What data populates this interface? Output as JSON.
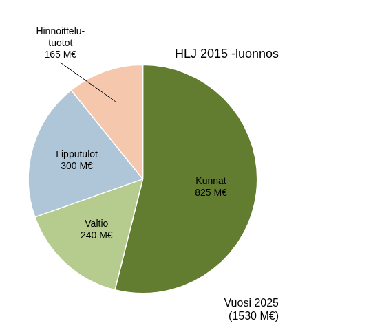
{
  "chart_data": {
    "type": "pie",
    "title": "HLJ 2015 -luonnos",
    "subtitle": "Vuosi 2025\n(1530 M€)",
    "categories": [
      "Kunnat\n825 M€",
      "Valtio\n240 M€",
      "Lipputulot\n300 M€",
      "Hinnoittelu-\ntuotot\n165 M€"
    ],
    "values": [
      825,
      240,
      300,
      165
    ],
    "colors": [
      "#627d30",
      "#b5cc8e",
      "#aec6d8",
      "#f5c8ae"
    ],
    "data_labels": true
  }
}
